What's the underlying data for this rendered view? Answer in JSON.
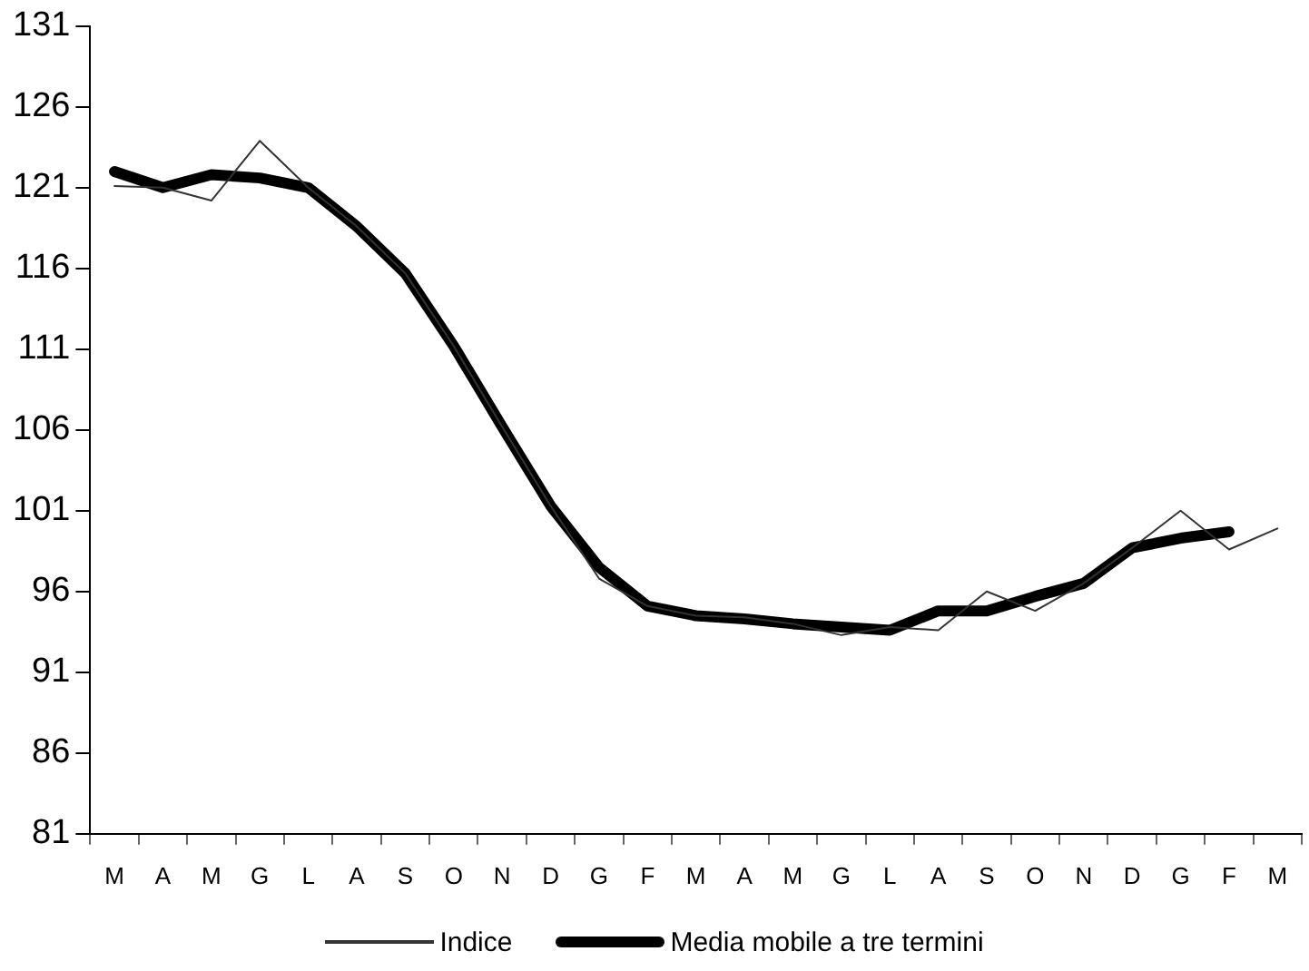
{
  "chart_data": {
    "type": "line",
    "categories": [
      "M",
      "A",
      "M",
      "G",
      "L",
      "A",
      "S",
      "O",
      "N",
      "D",
      "G",
      "F",
      "M",
      "A",
      "M",
      "G",
      "L",
      "A",
      "S",
      "O",
      "N",
      "D",
      "G",
      "F",
      "M"
    ],
    "series": [
      {
        "name": "Indice",
        "color": "#333333",
        "values": [
          121.1,
          121,
          120.2,
          123.9,
          121,
          118.6,
          115.7,
          111.2,
          106.2,
          101.3,
          96.8,
          95.1,
          94.5,
          94.4,
          94.0,
          93.3,
          93.8,
          93.6,
          96.0,
          94.8,
          96.5,
          98.7,
          101.0,
          98.6,
          99.9
        ]
      },
      {
        "name": "Media mobile a tre termini",
        "color": "#000000",
        "values": [
          122,
          121,
          121.8,
          121.6,
          121,
          118.6,
          115.7,
          111.2,
          106.2,
          101.3,
          97.5,
          95.1,
          94.5,
          94.3,
          94.0,
          93.8,
          93.6,
          94.8,
          94.8,
          95.7,
          96.5,
          98.7,
          99.3,
          99.7,
          null
        ]
      }
    ],
    "ylim": [
      81,
      131
    ],
    "yticks": [
      81,
      86,
      91,
      96,
      101,
      106,
      111,
      116,
      121,
      126,
      131
    ],
    "grid": false,
    "legend": "bottom",
    "marker": "none",
    "line_style": "solid"
  }
}
